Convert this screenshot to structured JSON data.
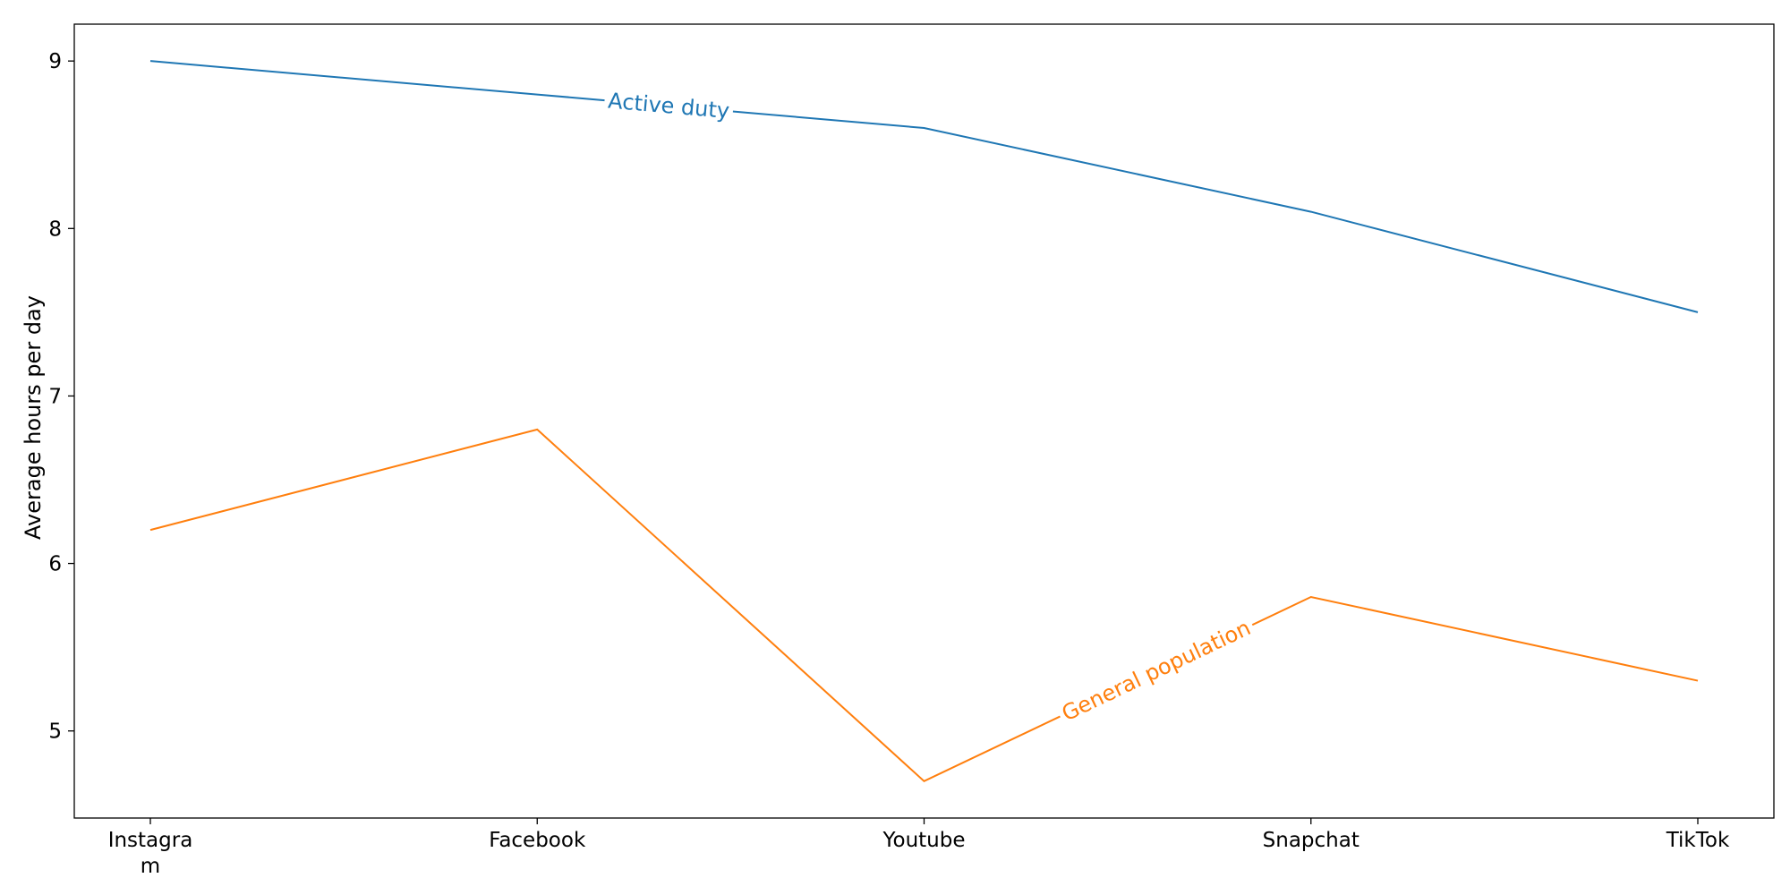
{
  "chart_data": {
    "type": "line",
    "categories": [
      "Instagram",
      "Facebook",
      "Youtube",
      "Snapchat",
      "TikTok"
    ],
    "category_tick_labels": [
      [
        "Instagra",
        "m"
      ],
      [
        "Facebook"
      ],
      [
        "Youtube"
      ],
      [
        "Snapchat"
      ],
      [
        "TikTok"
      ]
    ],
    "series": [
      {
        "name": "Active duty",
        "label_text": "Active duty",
        "color": "#1f77b4",
        "values": [
          9.0,
          8.8,
          8.6,
          8.1,
          7.5
        ]
      },
      {
        "name": "General population",
        "label_text": "General population",
        "color": "#ff7f0e",
        "values": [
          6.2,
          6.8,
          4.7,
          5.8,
          5.3
        ]
      }
    ],
    "title": "",
    "xlabel": "",
    "ylabel": "Average hours per day",
    "ylim": [
      4.48,
      9.22
    ],
    "yticks": [
      5,
      6,
      7,
      8,
      9
    ],
    "grid": false,
    "legend": "none (labels inline on lines)"
  }
}
